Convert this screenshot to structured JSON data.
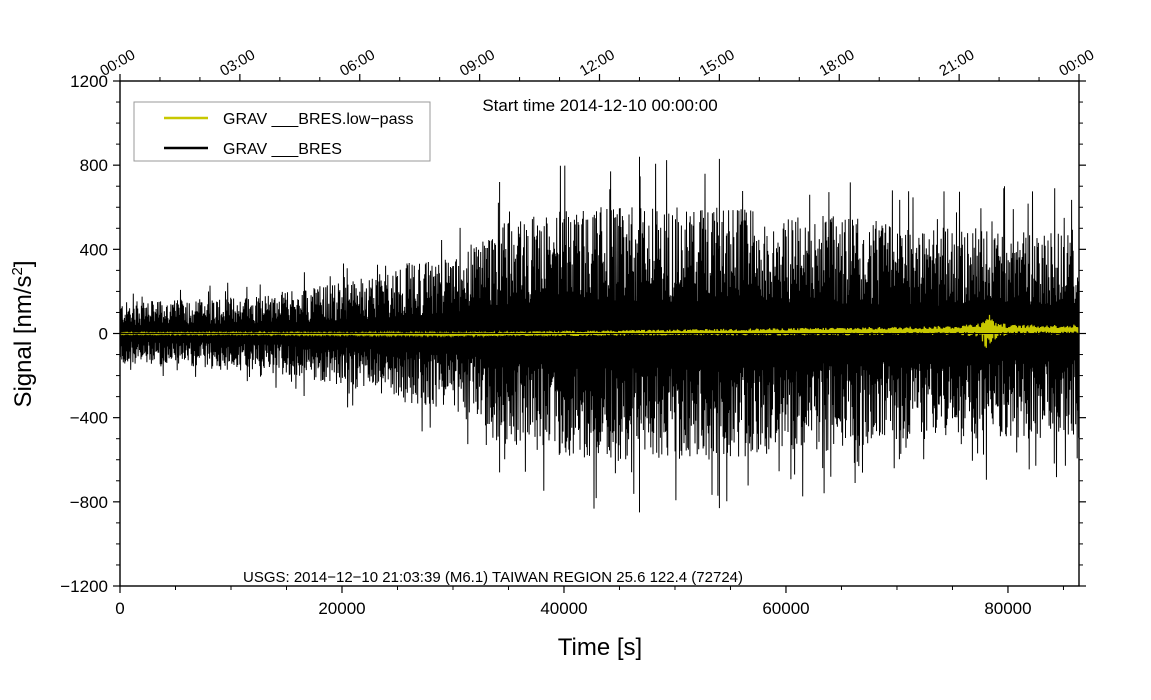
{
  "chart_data": {
    "type": "line",
    "title": "Start time 2014-12-10 00:00:00",
    "xlabel": "Time [s]",
    "ylabel_main": "Signal [nm/s",
    "ylabel_sup": "2",
    "ylabel_close": "]",
    "xlim": [
      0,
      86400
    ],
    "ylim": [
      -1200,
      1200
    ],
    "x_ticks": [
      {
        "value": 0,
        "label": "0"
      },
      {
        "value": 20000,
        "label": "20000"
      },
      {
        "value": 40000,
        "label": "40000"
      },
      {
        "value": 60000,
        "label": "60000"
      },
      {
        "value": 80000,
        "label": "80000"
      }
    ],
    "y_ticks": [
      {
        "value": 1200,
        "label": "1200"
      },
      {
        "value": 800,
        "label": "800"
      },
      {
        "value": 400,
        "label": "400"
      },
      {
        "value": 0,
        "label": "0"
      },
      {
        "value": -400,
        "label": "−400"
      },
      {
        "value": -800,
        "label": "−800"
      },
      {
        "value": -1200,
        "label": "−1200"
      }
    ],
    "top_ticks": [
      {
        "value": 0,
        "label": "00:00"
      },
      {
        "value": 10800,
        "label": "03:00"
      },
      {
        "value": 21600,
        "label": "06:00"
      },
      {
        "value": 32400,
        "label": "09:00"
      },
      {
        "value": 43200,
        "label": "12:00"
      },
      {
        "value": 54000,
        "label": "15:00"
      },
      {
        "value": 64800,
        "label": "18:00"
      },
      {
        "value": 75600,
        "label": "21:00"
      },
      {
        "value": 86400,
        "label": "00:00"
      }
    ],
    "legend_position": "top-left",
    "series": [
      {
        "name": "GRAV ___BRES.low−pass",
        "color": "#c8c800",
        "envelope": {
          "x": [
            0,
            10000,
            20000,
            30000,
            40000,
            50000,
            60000,
            70000,
            75000,
            77500,
            78000,
            79000,
            80000,
            86400
          ],
          "amplitude": [
            4,
            5,
            6,
            8,
            12,
            14,
            18,
            20,
            22,
            35,
            95,
            40,
            24,
            24
          ],
          "offset": [
            0,
            0,
            -2,
            -3,
            0,
            5,
            8,
            12,
            15,
            18,
            18,
            18,
            18,
            18
          ]
        }
      },
      {
        "name": "GRAV ___BRES",
        "color": "#000000",
        "envelope": {
          "x": [
            0,
            5000,
            10000,
            15000,
            20000,
            24000,
            25000,
            30000,
            33000,
            35000,
            40000,
            45000,
            50000,
            55000,
            60000,
            65000,
            70000,
            75000,
            80000,
            86400
          ],
          "amplitude": [
            150,
            160,
            175,
            200,
            250,
            290,
            330,
            360,
            480,
            540,
            590,
            610,
            600,
            600,
            560,
            560,
            520,
            500,
            500,
            500
          ],
          "peaks_pos": [
            [
              46800,
              840
            ],
            [
              54000,
              830
            ],
            [
              34200,
              720
            ]
          ],
          "peaks_neg": [
            [
              46800,
              -850
            ],
            [
              54000,
              -830
            ],
            [
              34200,
              -660
            ]
          ]
        }
      }
    ],
    "annotation": "USGS: 2014−12−10 21:03:39 (M6.1) TAIWAN REGION 25.6 122.4 (72724)"
  }
}
